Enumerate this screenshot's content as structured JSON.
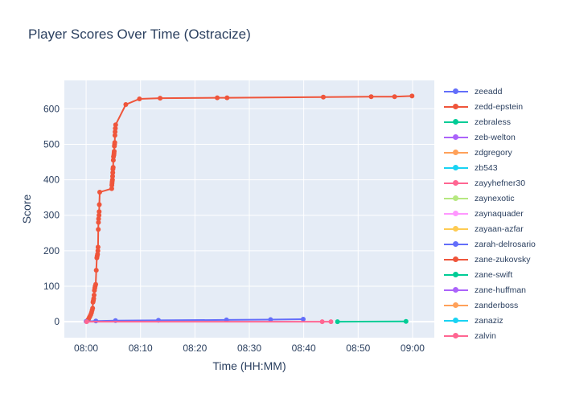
{
  "chart_data": {
    "type": "line",
    "title": "Player Scores Over Time (Ostracize)",
    "xlabel": "Time (HH:MM)",
    "ylabel": "Score",
    "x_ticks": [
      "08:00",
      "08:10",
      "08:20",
      "08:30",
      "08:40",
      "08:50",
      "09:00"
    ],
    "y_ticks": [
      0,
      100,
      200,
      300,
      400,
      500,
      600
    ],
    "xlim_minutes_after_0800": [
      -4,
      64
    ],
    "ylim": [
      -45,
      680
    ],
    "grid": true,
    "legend_position": "right",
    "colors": {
      "background": "#e5ecf6",
      "grid": "#ffffff",
      "text": "#2a3f5f"
    },
    "legend": [
      {
        "name": "zeeadd",
        "color": "#636efa"
      },
      {
        "name": "zedd-epstein",
        "color": "#EF553B"
      },
      {
        "name": "zebraless",
        "color": "#00cc96"
      },
      {
        "name": "zeb-welton",
        "color": "#ab63fa"
      },
      {
        "name": "zdgregory",
        "color": "#FFA15A"
      },
      {
        "name": "zb543",
        "color": "#19d3f3"
      },
      {
        "name": "zayyhefner30",
        "color": "#FF6692"
      },
      {
        "name": "zaynexotic",
        "color": "#B6E880"
      },
      {
        "name": "zaynaquader",
        "color": "#FF97FF"
      },
      {
        "name": "zayaan-azfar",
        "color": "#FECB52"
      },
      {
        "name": "zarah-delrosario",
        "color": "#636efa"
      },
      {
        "name": "zane-zukovsky",
        "color": "#EF553B"
      },
      {
        "name": "zane-swift",
        "color": "#00cc96"
      },
      {
        "name": "zane-huffman",
        "color": "#ab63fa"
      },
      {
        "name": "zanderboss",
        "color": "#FFA15A"
      },
      {
        "name": "zanaziz",
        "color": "#19d3f3"
      },
      {
        "name": "zalvin",
        "color": "#FF6692"
      }
    ],
    "series": [
      {
        "name": "zedd-epstein",
        "color": "#EF553B",
        "x": [
          "08:00:12",
          "08:00:20",
          "08:00:28",
          "08:00:36",
          "08:00:44",
          "08:00:52",
          "08:01:00",
          "08:01:06",
          "08:01:12",
          "08:01:16",
          "08:01:20",
          "08:01:24",
          "08:01:28",
          "08:01:32",
          "08:01:36",
          "08:01:40",
          "08:01:46",
          "08:01:52",
          "08:01:58",
          "08:02:02",
          "08:02:06",
          "08:02:10",
          "08:02:12",
          "08:02:14",
          "08:02:16",
          "08:02:18",
          "08:02:22",
          "08:02:24",
          "08:02:26",
          "08:02:30",
          "08:04:42",
          "08:04:44",
          "08:04:46",
          "08:04:48",
          "08:04:50",
          "08:04:52",
          "08:04:54",
          "08:04:56",
          "08:04:58",
          "08:05:00",
          "08:05:02",
          "08:05:06",
          "08:05:08",
          "08:05:10",
          "08:05:12",
          "08:05:14",
          "08:05:16",
          "08:05:18",
          "08:05:20",
          "08:05:22",
          "08:05:26",
          "08:07:18",
          "08:09:48",
          "08:13:36",
          "08:24:06",
          "08:25:54",
          "08:43:36",
          "08:52:24",
          "08:56:42",
          "08:59:54"
        ],
        "y": [
          2,
          5,
          8,
          12,
          16,
          20,
          26,
          32,
          38,
          55,
          60,
          65,
          75,
          88,
          95,
          100,
          105,
          145,
          180,
          185,
          190,
          200,
          210,
          260,
          280,
          290,
          300,
          310,
          330,
          365,
          375,
          385,
          390,
          395,
          400,
          410,
          420,
          430,
          435,
          455,
          465,
          470,
          475,
          480,
          495,
          500,
          505,
          525,
          535,
          545,
          555,
          612,
          628,
          630,
          631,
          631,
          633,
          634,
          634,
          636
        ]
      },
      {
        "name": "zeeadd",
        "color": "#636efa",
        "x": [
          "08:00:00",
          "08:01:48",
          "08:05:24",
          "08:13:18",
          "08:25:48",
          "08:33:54",
          "08:39:54"
        ],
        "y": [
          1,
          2,
          3,
          4,
          5,
          6,
          7
        ]
      },
      {
        "name": "zebraless",
        "color": "#00cc96",
        "x": [
          "08:46:12",
          "08:58:48"
        ],
        "y": [
          0,
          1
        ]
      },
      {
        "name": "zayyhefner30",
        "color": "#FF6692",
        "x": [
          "08:00:06",
          "08:43:24",
          "08:45:00"
        ],
        "y": [
          0,
          0,
          0
        ]
      }
    ]
  }
}
